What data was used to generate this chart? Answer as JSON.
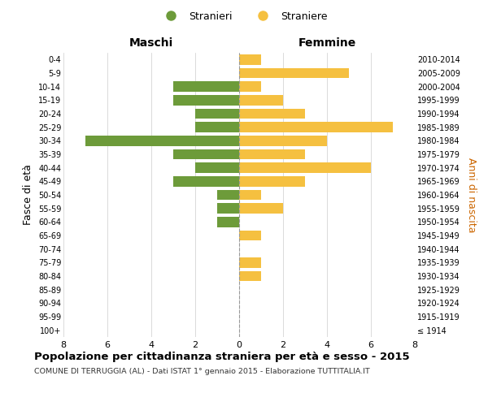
{
  "age_groups": [
    "100+",
    "95-99",
    "90-94",
    "85-89",
    "80-84",
    "75-79",
    "70-74",
    "65-69",
    "60-64",
    "55-59",
    "50-54",
    "45-49",
    "40-44",
    "35-39",
    "30-34",
    "25-29",
    "20-24",
    "15-19",
    "10-14",
    "5-9",
    "0-4"
  ],
  "birth_years": [
    "≤ 1914",
    "1915-1919",
    "1920-1924",
    "1925-1929",
    "1930-1934",
    "1935-1939",
    "1940-1944",
    "1945-1949",
    "1950-1954",
    "1955-1959",
    "1960-1964",
    "1965-1969",
    "1970-1974",
    "1975-1979",
    "1980-1984",
    "1985-1989",
    "1990-1994",
    "1995-1999",
    "2000-2004",
    "2005-2009",
    "2010-2014"
  ],
  "maschi": [
    0,
    0,
    0,
    0,
    0,
    0,
    0,
    0,
    1,
    1,
    1,
    3,
    2,
    3,
    7,
    2,
    2,
    3,
    3,
    0,
    0
  ],
  "femmine": [
    0,
    0,
    0,
    0,
    1,
    1,
    0,
    1,
    0,
    2,
    1,
    3,
    6,
    3,
    4,
    7,
    3,
    2,
    1,
    5,
    1
  ],
  "maschi_color": "#6d9b3a",
  "femmine_color": "#f5c040",
  "title": "Popolazione per cittadinanza straniera per età e sesso - 2015",
  "subtitle": "COMUNE DI TERRUGGIA (AL) - Dati ISTAT 1° gennaio 2015 - Elaborazione TUTTITALIA.IT",
  "xlabel_left": "Maschi",
  "xlabel_right": "Femmine",
  "ylabel_left": "Fasce di età",
  "ylabel_right": "Anni di nascita",
  "legend_maschi": "Stranieri",
  "legend_femmine": "Straniere",
  "xlim": 8,
  "background_color": "#ffffff",
  "grid_color": "#cccccc"
}
